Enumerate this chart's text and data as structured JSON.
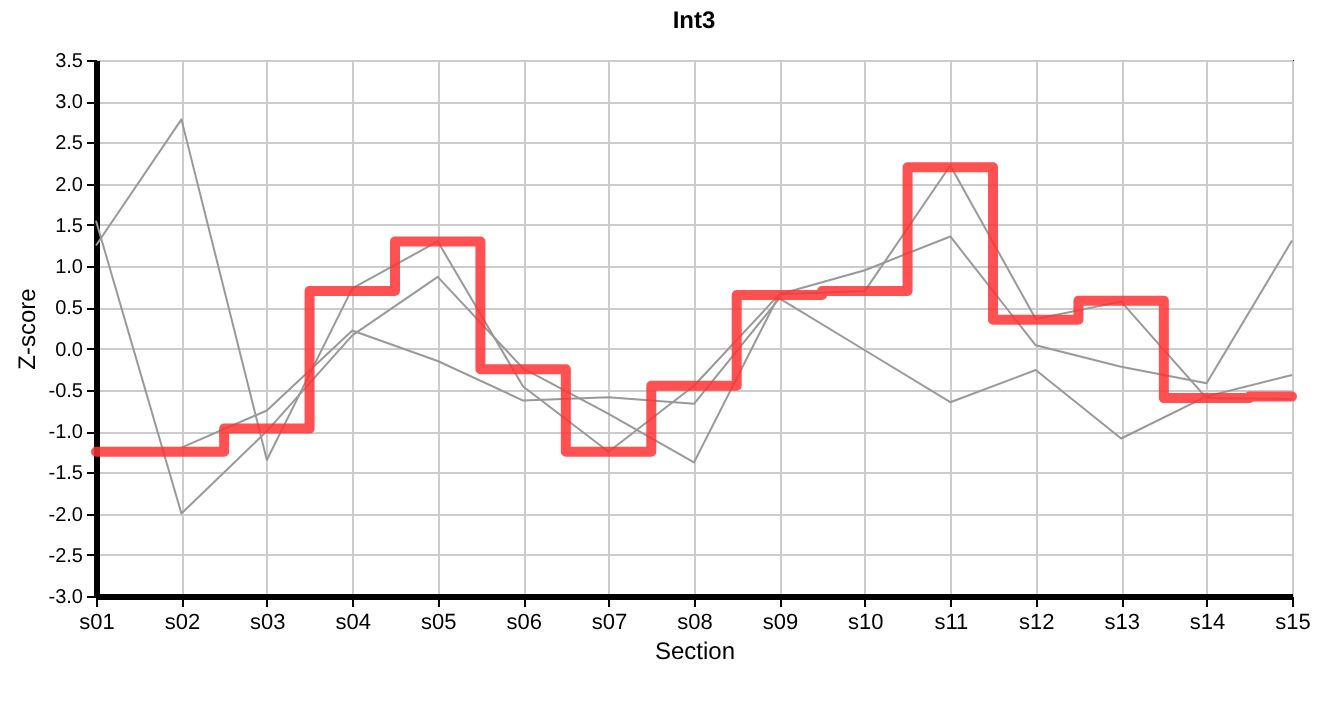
{
  "chart_data": {
    "type": "line",
    "title": "Int3",
    "xlabel": "Section",
    "ylabel": "Z-score",
    "categories": [
      "s01",
      "s02",
      "s03",
      "s04",
      "s05",
      "s06",
      "s07",
      "s08",
      "s09",
      "s10",
      "s11",
      "s12",
      "s13",
      "s14",
      "s15"
    ],
    "series": [
      {
        "color": "#999999",
        "values": [
          1.25,
          2.78,
          -1.35,
          0.73,
          1.3,
          -0.46,
          -1.25,
          -0.45,
          0.66,
          0.7,
          2.22,
          0.36,
          0.57,
          -0.6,
          -0.61
        ]
      },
      {
        "color": "#999999",
        "values": [
          1.55,
          -2.0,
          -1.0,
          0.16,
          0.87,
          -0.24,
          -0.79,
          -1.38,
          0.66,
          0.95,
          1.36,
          0.04,
          -0.22,
          -0.42,
          1.31
        ]
      },
      {
        "color": "#999999",
        "values": [
          null,
          -1.2,
          -0.75,
          0.22,
          -0.15,
          -0.63,
          -0.59,
          -0.67,
          0.61,
          -0.02,
          -0.65,
          -0.26,
          -1.09,
          -0.58,
          -0.32
        ]
      },
      {
        "type": "step",
        "color": "#ff3333",
        "values": [
          -1.25,
          -1.25,
          -0.97,
          0.7,
          1.3,
          -0.25,
          -1.25,
          -0.45,
          0.65,
          0.7,
          2.2,
          0.35,
          0.58,
          -0.6,
          -0.58
        ]
      }
    ],
    "ylim": [
      -3,
      3.5
    ],
    "yticks": [
      {
        "value": -3,
        "label": "-3.0"
      },
      -2.5,
      {
        "value": -2,
        "label": "-2.0"
      },
      -1.5,
      {
        "value": -1,
        "label": "-1.0"
      },
      -0.5,
      {
        "value": 0,
        "label": "0.0"
      },
      0.5,
      {
        "value": 1,
        "label": "1.0"
      },
      1.5,
      {
        "value": 2,
        "label": "2.0"
      },
      2.5,
      {
        "value": 3,
        "label": "3.0"
      },
      3.5
    ],
    "grid": true
  }
}
